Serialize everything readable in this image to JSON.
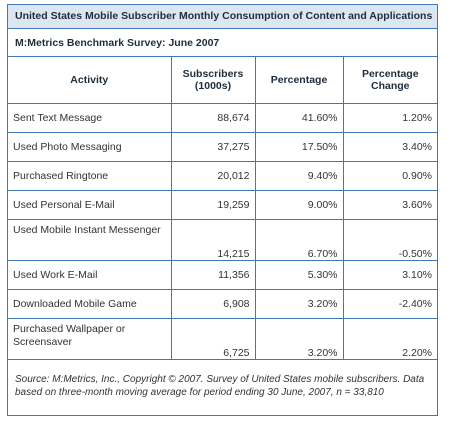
{
  "title": "United States Mobile Subscriber Monthly Consumption of Content and Applications",
  "subtitle": "M:Metrics Benchmark Survey: June 2007",
  "headers": {
    "activity": "Activity",
    "subscribers": "Subscribers (1000s)",
    "percentage": "Percentage",
    "change": "Percentage Change"
  },
  "rows": [
    {
      "activity": "Sent Text Message",
      "subscribers": "88,674",
      "percentage": "41.60%",
      "change": "1.20%"
    },
    {
      "activity": "Used Photo Messaging",
      "subscribers": "37,275",
      "percentage": "17.50%",
      "change": "3.40%"
    },
    {
      "activity": "Purchased Ringtone",
      "subscribers": "20,012",
      "percentage": "9.40%",
      "change": "0.90%"
    },
    {
      "activity": "Used Personal E-Mail",
      "subscribers": "19,259",
      "percentage": "9.00%",
      "change": "3.60%"
    },
    {
      "activity": "Used Mobile Instant Messenger",
      "subscribers": "14,215",
      "percentage": "6.70%",
      "change": "-0.50%"
    },
    {
      "activity": "Used Work E-Mail",
      "subscribers": "11,356",
      "percentage": "5.30%",
      "change": "3.10%"
    },
    {
      "activity": "Downloaded Mobile Game",
      "subscribers": "6,908",
      "percentage": "3.20%",
      "change": "-2.40%"
    },
    {
      "activity": "Purchased Wallpaper or Screensaver",
      "subscribers": "6,725",
      "percentage": "3.20%",
      "change": "2.20%"
    }
  ],
  "source": "Source: M:Metrics, Inc., Copyright © 2007. Survey of United States mobile subscribers. Data based on three-month moving average for period ending 30 June, 2007, n = 33,810",
  "colors": {
    "border": "#3f78b3",
    "title_background": "#dce6f1"
  }
}
